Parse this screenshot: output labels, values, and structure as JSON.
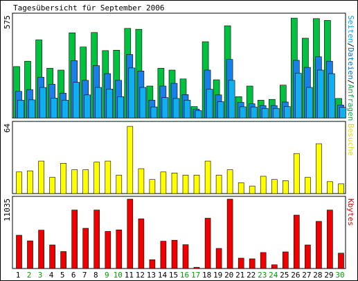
{
  "chart_data": {
    "type": "bar",
    "title": "Tagesübersicht für September 2006",
    "days": [
      "1",
      "2",
      "3",
      "4",
      "5",
      "6",
      "7",
      "8",
      "9",
      "10",
      "11",
      "12",
      "13",
      "14",
      "15",
      "16",
      "17",
      "18",
      "19",
      "20",
      "21",
      "22",
      "23",
      "24",
      "25",
      "26",
      "27",
      "28",
      "29",
      "30"
    ],
    "weekend_days": [
      "2",
      "3",
      "9",
      "10",
      "16",
      "17",
      "23",
      "24",
      "30"
    ],
    "panels": [
      {
        "ymax_label": "575",
        "side_label": {
          "parts": [
            {
              "text": "Seiten",
              "color": "#00a0ff"
            },
            {
              "text": "/",
              "color": "#000000"
            },
            {
              "text": "Dateien",
              "color": "#0070e0"
            },
            {
              "text": "/",
              "color": "#000000"
            },
            {
              "text": "Anfragen",
              "color": "#00b040"
            }
          ]
        },
        "ylim": [
          0,
          575
        ],
        "series": [
          {
            "name": "Anfragen",
            "color": "#00c040",
            "values": [
              290,
              320,
              440,
              280,
              270,
              480,
              400,
              482,
              380,
              382,
              505,
              500,
              180,
              280,
              270,
              220,
              64,
              430,
              215,
              520,
              120,
              180,
              100,
              105,
              185,
              563,
              450,
              560,
              550,
              110
            ]
          },
          {
            "name": "Dateien",
            "color": "#1880e8",
            "values": [
              150,
              160,
              230,
              190,
              140,
              323,
              212,
              295,
              250,
              212,
              358,
              265,
              100,
              180,
              195,
              132,
              50,
              270,
              130,
              330,
              88,
              80,
              70,
              70,
              90,
              325,
              285,
              345,
              320,
              73
            ]
          },
          {
            "name": "Seiten",
            "color": "#10b0f0",
            "values": [
              100,
              102,
              172,
              112,
              100,
              201,
              130,
              172,
              163,
              120,
              282,
              172,
              62,
              115,
              110,
              100,
              42,
              162,
              92,
              212,
              63,
              62,
              54,
              54,
              64,
              252,
              172,
              270,
              250,
              60
            ]
          }
        ]
      },
      {
        "ymax_label": "64",
        "side_label": {
          "parts": [
            {
              "text": "Besuche",
              "color": "#e0e000"
            }
          ]
        },
        "ylim": [
          0,
          64
        ],
        "series": [
          {
            "name": "Besuche",
            "color": "#ffff00",
            "values": [
              20,
              21,
              30,
              15,
              28,
              22,
              22,
              29,
              30,
              17,
              62,
              23,
              13,
              20,
              19,
              17,
              17,
              30,
              17,
              22,
              10,
              7,
              16,
              13,
              12,
              37,
              15,
              46,
              11,
              9
            ]
          }
        ]
      },
      {
        "ymax_label": "11035",
        "side_label": {
          "parts": [
            {
              "text": "Kbytes",
              "color": "#e00000"
            }
          ]
        },
        "ylim": [
          0,
          11035
        ],
        "series": [
          {
            "name": "Kbytes",
            "color": "#ee0000",
            "values": [
              5300,
              4400,
              6100,
              3750,
              2700,
              9300,
              6400,
              9300,
              5900,
              6150,
              11035,
              7900,
              1400,
              4350,
              4500,
              3800,
              200,
              8000,
              3200,
              11035,
              1650,
              1550,
              2550,
              600,
              2650,
              8500,
              3750,
              7500,
              9300,
              2450
            ]
          }
        ]
      }
    ]
  }
}
